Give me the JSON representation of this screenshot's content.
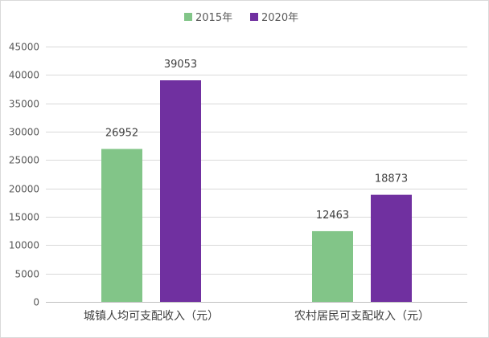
{
  "chart_data": {
    "type": "bar",
    "title": "",
    "xlabel": "",
    "ylabel": "",
    "categories": [
      "城镇人均可支配收入（元）",
      "农村居民可支配收入（元）"
    ],
    "series": [
      {
        "name": "2015年",
        "values": [
          26952,
          12463
        ],
        "color": "#82c588"
      },
      {
        "name": "2020年",
        "values": [
          39053,
          18873
        ],
        "color": "#7030a0"
      }
    ],
    "ylim": [
      0,
      45000
    ],
    "yticks": [
      0,
      5000,
      10000,
      15000,
      20000,
      25000,
      30000,
      35000,
      40000,
      45000
    ],
    "grid": true,
    "legend_position": "top-center",
    "data_labels": true
  }
}
